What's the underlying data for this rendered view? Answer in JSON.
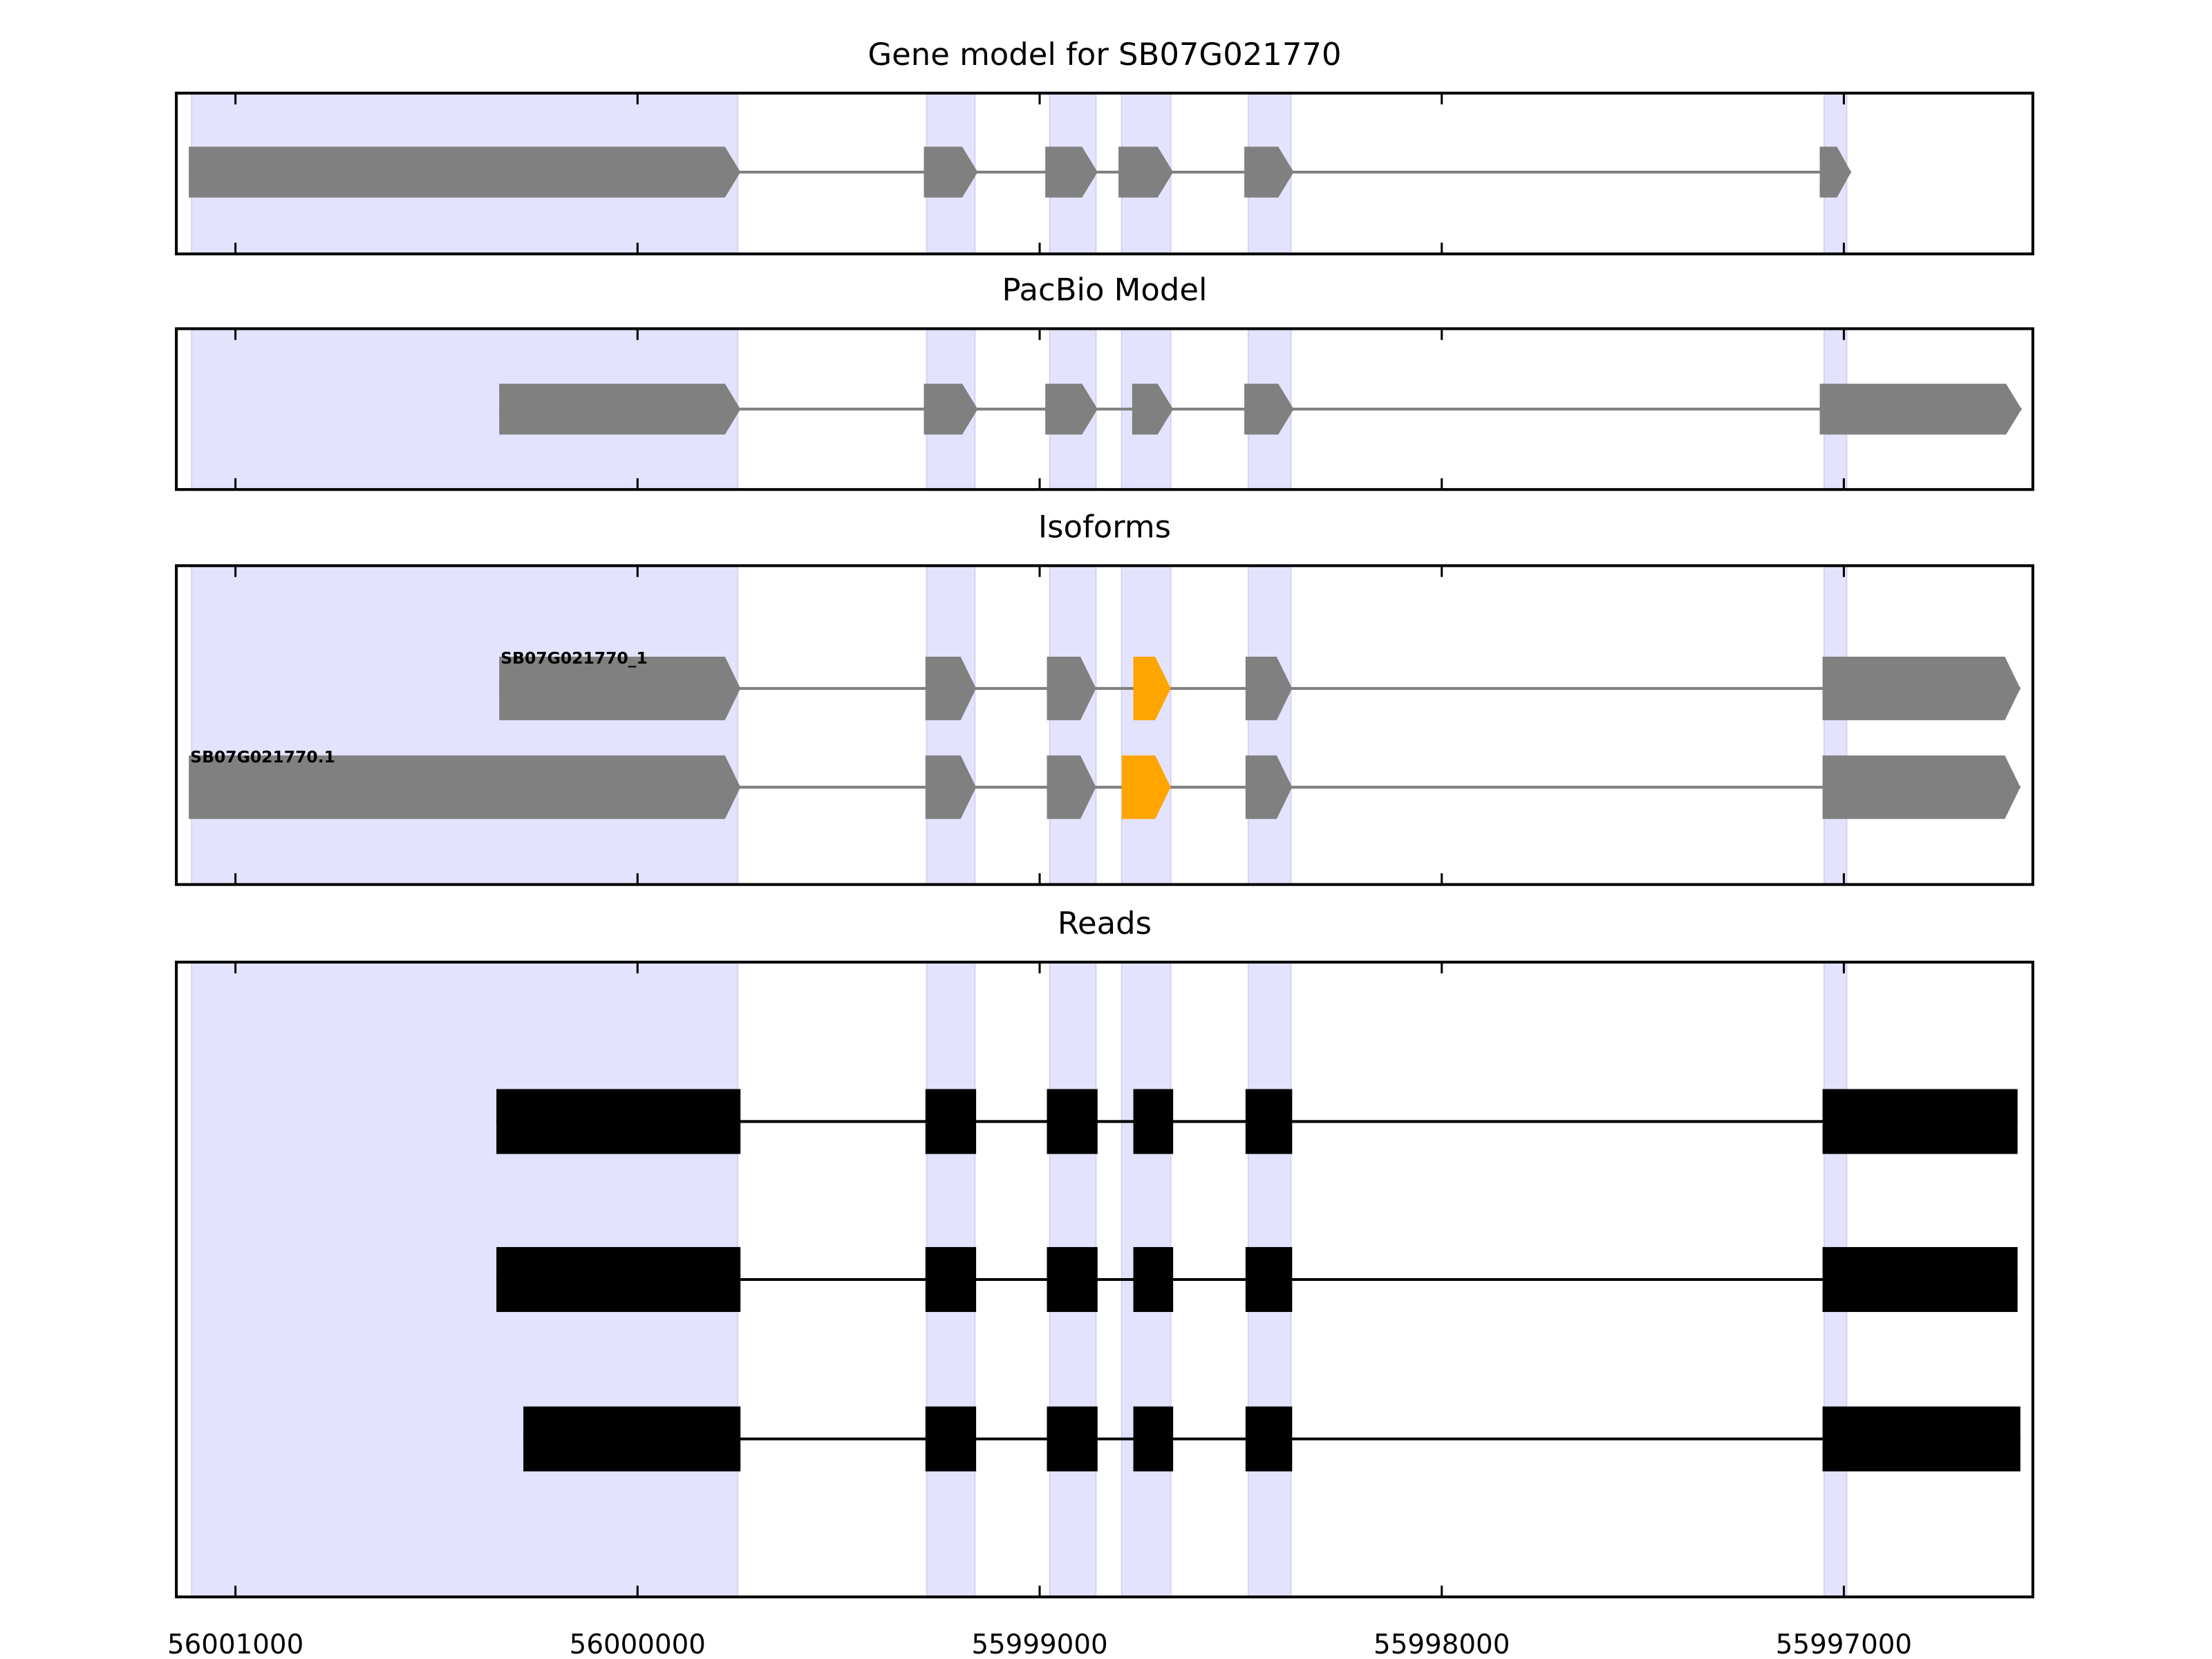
{
  "chart_data": [
    {
      "type": "gene-track",
      "title": "Gene model for SB07G021770",
      "xlim": [
        56001147,
        55996530
      ],
      "strand_arrow": "right",
      "color": "#808080",
      "rows": [
        {
          "label": "",
          "exons": [
            [
              56001116,
              55999744
            ],
            [
              55999288,
              55999154
            ],
            [
              55998986,
              55998856
            ],
            [
              55998804,
              55998668
            ],
            [
              55998491,
              55998368
            ],
            [
              55997060,
              55996982
            ]
          ]
        }
      ]
    },
    {
      "type": "gene-track",
      "title": "PacBio Model",
      "xlim": [
        56001147,
        55996530
      ],
      "strand_arrow": "right",
      "color": "#808080",
      "rows": [
        {
          "label": "",
          "exons": [
            [
              56000344,
              55999744
            ],
            [
              55999288,
              55999154
            ],
            [
              55998986,
              55998856
            ],
            [
              55998770,
              55998668
            ],
            [
              55998491,
              55998368
            ],
            [
              55997060,
              55996558
            ]
          ]
        }
      ]
    },
    {
      "type": "gene-track",
      "title": "Isoforms",
      "xlim": [
        56001147,
        55996530
      ],
      "strand_arrow": "right",
      "color": "#808080",
      "highlight_color": "#FFA500",
      "rows": [
        {
          "label": "SB07G021770_1",
          "exons": [
            [
              56000344,
              55999744
            ],
            [
              55999284,
              55999158
            ],
            [
              55998982,
              55998860
            ],
            [
              55998767,
              55998674
            ],
            [
              55998488,
              55998372
            ],
            [
              55997053,
              55996561
            ]
          ],
          "highlight": [
            3
          ]
        },
        {
          "label": "SB07G021770.1",
          "exons": [
            [
              56001116,
              55999744
            ],
            [
              55999284,
              55999158
            ],
            [
              55998982,
              55998860
            ],
            [
              55998796,
              55998674
            ],
            [
              55998488,
              55998372
            ],
            [
              55997053,
              55996561
            ]
          ],
          "highlight": [
            3
          ]
        }
      ]
    },
    {
      "type": "gene-track",
      "title": "Reads",
      "xlim": [
        56001147,
        55996530
      ],
      "strand_arrow": "none",
      "color": "#000000",
      "rows": [
        {
          "label": "",
          "exons": [
            [
              56000351,
              55999744
            ],
            [
              55999284,
              55999158
            ],
            [
              55998982,
              55998856
            ],
            [
              55998767,
              55998668
            ],
            [
              55998488,
              55998372
            ],
            [
              55997053,
              55996568
            ]
          ]
        },
        {
          "label": "",
          "exons": [
            [
              56000351,
              55999744
            ],
            [
              55999284,
              55999158
            ],
            [
              55998982,
              55998856
            ],
            [
              55998767,
              55998668
            ],
            [
              55998488,
              55998372
            ],
            [
              55997053,
              55996568
            ]
          ]
        },
        {
          "label": "",
          "exons": [
            [
              56000284,
              55999744
            ],
            [
              55999284,
              55999158
            ],
            [
              55998982,
              55998856
            ],
            [
              55998767,
              55998668
            ],
            [
              55998488,
              55998372
            ],
            [
              55997053,
              55996561
            ]
          ]
        }
      ]
    }
  ],
  "shaded_regions": [
    [
      56001109,
      55999751
    ],
    [
      55999281,
      55999161
    ],
    [
      55998975,
      55998860
    ],
    [
      55998796,
      55998674
    ],
    [
      55998481,
      55998375
    ],
    [
      55997049,
      55996993
    ]
  ],
  "shade_color": "#E3E3FD",
  "x_ticks": [
    56001000,
    56000000,
    55999000,
    55998000,
    55997000
  ],
  "x_tick_labels": [
    "56001000",
    "56000000",
    "55999000",
    "55998000",
    "55997000"
  ]
}
